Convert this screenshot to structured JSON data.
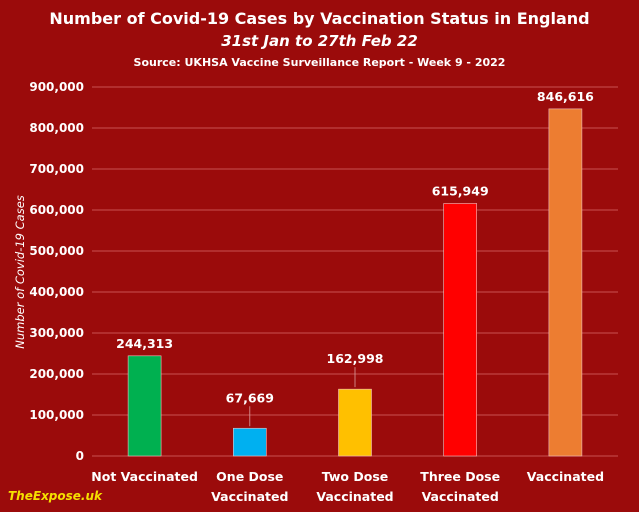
{
  "chart_data": {
    "type": "bar",
    "title": "Number of Covid-19 Cases by Vaccination Status in England",
    "subtitle": "31st Jan to 27th Feb 22",
    "source": "Source: UKHSA Vaccine Surveillance Report - Week 9 - 2022",
    "ylabel": "Number of Covid-19 Cases",
    "xlabel": "",
    "ylim": [
      0,
      900000
    ],
    "yticks": [
      0,
      100000,
      200000,
      300000,
      400000,
      500000,
      600000,
      700000,
      800000,
      900000
    ],
    "ytick_labels": [
      "0",
      "100,000",
      "200,000",
      "300,000",
      "400,000",
      "500,000",
      "600,000",
      "700,000",
      "800,000",
      "900,000"
    ],
    "grid": true,
    "categories": [
      [
        "Not Vaccinated"
      ],
      [
        "One Dose",
        "Vaccinated"
      ],
      [
        "Two Dose",
        "Vaccinated"
      ],
      [
        "Three Dose",
        "Vaccinated"
      ],
      [
        "Vaccinated"
      ]
    ],
    "values": [
      244313,
      67669,
      162998,
      615949,
      846616
    ],
    "data_labels": [
      "244,313",
      "67,669",
      "162,998",
      "615,949",
      "846,616"
    ],
    "colors": [
      "#00b050",
      "#00b0f0",
      "#ffc000",
      "#ff0000",
      "#ed7d31"
    ]
  },
  "watermark": "TheExpose.uk",
  "colors": {
    "background": "#9b0b0b",
    "text": "#ffffff",
    "watermark": "#f5e000"
  }
}
